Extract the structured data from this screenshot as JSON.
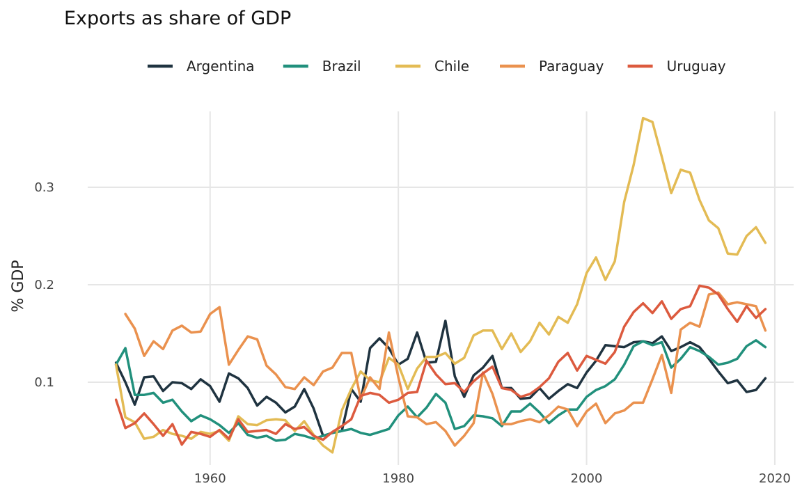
{
  "chart_data": {
    "type": "line",
    "title": "Exports as share of GDP",
    "xlabel": "",
    "ylabel": "% GDP",
    "xlim": [
      1947,
      2022
    ],
    "ylim": [
      0.015,
      0.385
    ],
    "x_ticks": [
      1960,
      1980,
      2000,
      2020
    ],
    "y_ticks": [
      0.1,
      0.2,
      0.3
    ],
    "x_tick_labels": [
      "1960",
      "1980",
      "2000",
      "2020"
    ],
    "y_tick_labels": [
      "0.1",
      "0.2",
      "0.3"
    ],
    "grid": true,
    "legend_position": "top",
    "series": [
      {
        "name": "Argentina",
        "color": "#1f3340",
        "x": [
          1950,
          1951,
          1952,
          1953,
          1954,
          1955,
          1956,
          1957,
          1958,
          1959,
          1960,
          1961,
          1962,
          1963,
          1964,
          1965,
          1966,
          1967,
          1968,
          1969,
          1970,
          1971,
          1972,
          1973,
          1974,
          1975,
          1976,
          1977,
          1978,
          1979,
          1980,
          1981,
          1982,
          1983,
          1984,
          1985,
          1986,
          1987,
          1988,
          1989,
          1990,
          1991,
          1992,
          1993,
          1994,
          1995,
          1996,
          1997,
          1998,
          1999,
          2000,
          2001,
          2002,
          2003,
          2004,
          2005,
          2006,
          2007,
          2008,
          2009,
          2010,
          2011,
          2012,
          2013,
          2014,
          2015,
          2016,
          2017,
          2018,
          2019
        ],
        "y": [
          0.12,
          0.1,
          0.077,
          0.105,
          0.106,
          0.091,
          0.1,
          0.099,
          0.093,
          0.103,
          0.096,
          0.08,
          0.109,
          0.104,
          0.094,
          0.076,
          0.085,
          0.079,
          0.069,
          0.075,
          0.093,
          0.073,
          0.045,
          0.048,
          0.05,
          0.093,
          0.08,
          0.135,
          0.145,
          0.135,
          0.118,
          0.124,
          0.151,
          0.12,
          0.121,
          0.163,
          0.106,
          0.085,
          0.107,
          0.115,
          0.127,
          0.094,
          0.094,
          0.083,
          0.084,
          0.094,
          0.083,
          0.091,
          0.098,
          0.094,
          0.11,
          0.122,
          0.138,
          0.137,
          0.136,
          0.141,
          0.142,
          0.14,
          0.147,
          0.132,
          0.136,
          0.141,
          0.136,
          0.124,
          0.111,
          0.099,
          0.102,
          0.09,
          0.092,
          0.104
        ]
      },
      {
        "name": "Brazil",
        "color": "#21907c",
        "x": [
          1950,
          1951,
          1952,
          1953,
          1954,
          1955,
          1956,
          1957,
          1958,
          1959,
          1960,
          1961,
          1962,
          1963,
          1964,
          1965,
          1966,
          1967,
          1968,
          1969,
          1970,
          1971,
          1972,
          1973,
          1974,
          1975,
          1976,
          1977,
          1978,
          1979,
          1980,
          1981,
          1982,
          1983,
          1984,
          1985,
          1986,
          1987,
          1988,
          1989,
          1990,
          1991,
          1992,
          1993,
          1994,
          1995,
          1996,
          1997,
          1998,
          1999,
          2000,
          2001,
          2002,
          2003,
          2004,
          2005,
          2006,
          2007,
          2008,
          2009,
          2010,
          2011,
          2012,
          2013,
          2014,
          2015,
          2016,
          2017,
          2018,
          2019
        ],
        "y": [
          0.118,
          0.135,
          0.087,
          0.087,
          0.089,
          0.079,
          0.082,
          0.07,
          0.06,
          0.066,
          0.062,
          0.056,
          0.048,
          0.058,
          0.046,
          0.043,
          0.045,
          0.04,
          0.041,
          0.047,
          0.045,
          0.042,
          0.045,
          0.048,
          0.05,
          0.052,
          0.048,
          0.046,
          0.049,
          0.052,
          0.066,
          0.075,
          0.064,
          0.074,
          0.088,
          0.079,
          0.052,
          0.055,
          0.066,
          0.065,
          0.063,
          0.055,
          0.07,
          0.07,
          0.078,
          0.069,
          0.058,
          0.066,
          0.072,
          0.072,
          0.085,
          0.092,
          0.096,
          0.103,
          0.118,
          0.137,
          0.142,
          0.138,
          0.141,
          0.115,
          0.124,
          0.136,
          0.132,
          0.126,
          0.118,
          0.12,
          0.124,
          0.137,
          0.143,
          0.136
        ]
      },
      {
        "name": "Chile",
        "color": "#e3bb54",
        "x": [
          1950,
          1951,
          1952,
          1953,
          1954,
          1955,
          1956,
          1957,
          1958,
          1959,
          1960,
          1961,
          1962,
          1963,
          1964,
          1965,
          1966,
          1967,
          1968,
          1969,
          1970,
          1971,
          1972,
          1973,
          1974,
          1975,
          1976,
          1977,
          1978,
          1979,
          1980,
          1981,
          1982,
          1983,
          1984,
          1985,
          1986,
          1987,
          1988,
          1989,
          1990,
          1991,
          1992,
          1993,
          1994,
          1995,
          1996,
          1997,
          1998,
          1999,
          2000,
          2001,
          2002,
          2003,
          2004,
          2005,
          2006,
          2007,
          2008,
          2009,
          2010,
          2011,
          2012,
          2013,
          2014,
          2015,
          2016,
          2017,
          2018,
          2019
        ],
        "y": [
          0.118,
          0.064,
          0.059,
          0.042,
          0.044,
          0.051,
          0.047,
          0.045,
          0.042,
          0.049,
          0.047,
          0.05,
          0.04,
          0.065,
          0.057,
          0.056,
          0.061,
          0.062,
          0.061,
          0.05,
          0.06,
          0.046,
          0.035,
          0.028,
          0.071,
          0.093,
          0.111,
          0.102,
          0.1,
          0.125,
          0.118,
          0.093,
          0.114,
          0.126,
          0.126,
          0.13,
          0.119,
          0.125,
          0.148,
          0.153,
          0.153,
          0.134,
          0.15,
          0.131,
          0.142,
          0.161,
          0.149,
          0.167,
          0.161,
          0.18,
          0.212,
          0.228,
          0.205,
          0.224,
          0.285,
          0.323,
          0.371,
          0.367,
          0.331,
          0.294,
          0.318,
          0.315,
          0.287,
          0.266,
          0.258,
          0.232,
          0.231,
          0.25,
          0.259,
          0.243
        ]
      },
      {
        "name": "Paraguay",
        "color": "#ea914e",
        "x": [
          1951,
          1952,
          1953,
          1954,
          1955,
          1956,
          1957,
          1958,
          1959,
          1960,
          1961,
          1962,
          1963,
          1964,
          1965,
          1966,
          1967,
          1968,
          1969,
          1970,
          1971,
          1972,
          1973,
          1974,
          1975,
          1976,
          1977,
          1978,
          1979,
          1980,
          1981,
          1982,
          1983,
          1984,
          1985,
          1986,
          1987,
          1988,
          1989,
          1990,
          1991,
          1992,
          1993,
          1994,
          1995,
          1996,
          1997,
          1998,
          1999,
          2000,
          2001,
          2002,
          2003,
          2004,
          2005,
          2006,
          2007,
          2008,
          2009,
          2010,
          2011,
          2012,
          2013,
          2014,
          2015,
          2016,
          2017,
          2018,
          2019
        ],
        "y": [
          0.17,
          0.155,
          0.127,
          0.142,
          0.134,
          0.153,
          0.158,
          0.151,
          0.152,
          0.17,
          0.177,
          0.118,
          0.133,
          0.147,
          0.144,
          0.117,
          0.108,
          0.095,
          0.093,
          0.105,
          0.097,
          0.111,
          0.115,
          0.13,
          0.13,
          0.083,
          0.105,
          0.093,
          0.151,
          0.105,
          0.065,
          0.064,
          0.057,
          0.059,
          0.05,
          0.035,
          0.045,
          0.058,
          0.11,
          0.088,
          0.057,
          0.057,
          0.06,
          0.062,
          0.059,
          0.066,
          0.075,
          0.072,
          0.055,
          0.07,
          0.078,
          0.058,
          0.068,
          0.071,
          0.079,
          0.079,
          0.103,
          0.128,
          0.089,
          0.154,
          0.161,
          0.157,
          0.19,
          0.192,
          0.18,
          0.182,
          0.18,
          0.178,
          0.153
        ]
      },
      {
        "name": "Uruguay",
        "color": "#dc5a3e",
        "x": [
          1950,
          1951,
          1952,
          1953,
          1954,
          1955,
          1956,
          1957,
          1958,
          1959,
          1960,
          1961,
          1962,
          1963,
          1964,
          1965,
          1966,
          1967,
          1968,
          1969,
          1970,
          1971,
          1972,
          1973,
          1974,
          1975,
          1976,
          1977,
          1978,
          1979,
          1980,
          1981,
          1982,
          1983,
          1984,
          1985,
          1986,
          1987,
          1988,
          1989,
          1990,
          1991,
          1992,
          1993,
          1994,
          1995,
          1996,
          1997,
          1998,
          1999,
          2000,
          2001,
          2002,
          2003,
          2004,
          2005,
          2006,
          2007,
          2008,
          2009,
          2010,
          2011,
          2012,
          2013,
          2014,
          2015,
          2016,
          2017,
          2018,
          2019
        ],
        "y": [
          0.082,
          0.053,
          0.058,
          0.068,
          0.057,
          0.045,
          0.057,
          0.036,
          0.049,
          0.047,
          0.044,
          0.051,
          0.042,
          0.062,
          0.049,
          0.05,
          0.051,
          0.047,
          0.057,
          0.052,
          0.054,
          0.045,
          0.041,
          0.049,
          0.055,
          0.062,
          0.086,
          0.089,
          0.087,
          0.079,
          0.082,
          0.089,
          0.09,
          0.122,
          0.108,
          0.098,
          0.099,
          0.09,
          0.101,
          0.109,
          0.116,
          0.094,
          0.092,
          0.085,
          0.088,
          0.095,
          0.104,
          0.121,
          0.13,
          0.112,
          0.127,
          0.123,
          0.119,
          0.131,
          0.157,
          0.172,
          0.181,
          0.171,
          0.183,
          0.165,
          0.175,
          0.178,
          0.199,
          0.197,
          0.19,
          0.175,
          0.162,
          0.178,
          0.166,
          0.175
        ]
      }
    ]
  }
}
